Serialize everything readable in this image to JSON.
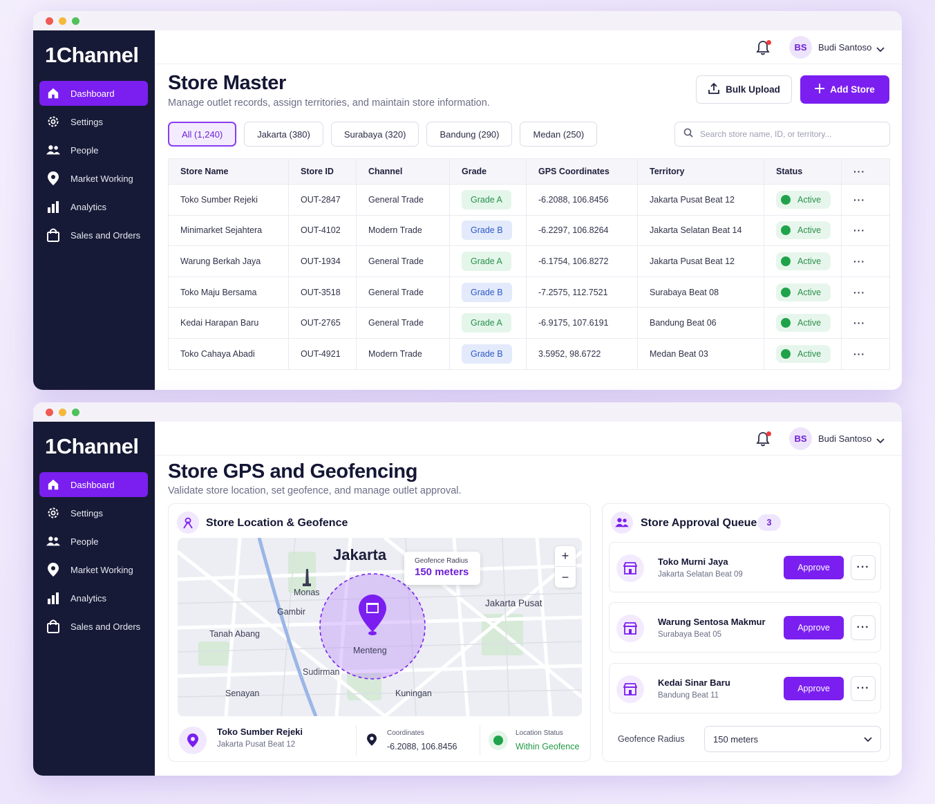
{
  "app": {
    "logo": "1Channel",
    "nav": [
      "Dashboard",
      "Settings",
      "People",
      "Market Working",
      "Analytics",
      "Sales and Orders"
    ],
    "active_nav": "Dashboard",
    "user": {
      "initials": "BS",
      "name": "Budi Santoso"
    },
    "accent": "#7a1ff0"
  },
  "store_master": {
    "title": "Store Master",
    "subtitle": "Manage outlet records, assign territories, and maintain store information.",
    "bulk_upload": "Bulk Upload",
    "add_store": "Add Store",
    "filters": [
      "All (1,240)",
      "Jakarta (380)",
      "Surabaya (320)",
      "Bandung (290)",
      "Medan (250)"
    ],
    "search_placeholder": "Search store name, ID, or territory...",
    "columns": [
      "Store Name",
      "Store ID",
      "Channel",
      "Grade",
      "GPS Coordinates",
      "Territory",
      "Status"
    ],
    "rows": [
      {
        "name": "Toko Sumber Rejeki",
        "id": "OUT-2847",
        "channel": "General Trade",
        "grade": "Grade A",
        "gps": "-6.2088, 106.8456",
        "territory": "Jakarta Pusat Beat 12",
        "status": "Active"
      },
      {
        "name": "Minimarket Sejahtera",
        "id": "OUT-4102",
        "channel": "Modern Trade",
        "grade": "Grade B",
        "gps": "-6.2297, 106.8264",
        "territory": "Jakarta Selatan Beat 14",
        "status": "Active"
      },
      {
        "name": "Warung Berkah Jaya",
        "id": "OUT-1934",
        "channel": "General Trade",
        "grade": "Grade A",
        "gps": "-6.1754, 106.8272",
        "territory": "Jakarta Pusat Beat 12",
        "status": "Active"
      },
      {
        "name": "Toko Maju Bersama",
        "id": "OUT-3518",
        "channel": "General Trade",
        "grade": "Grade B",
        "gps": "-7.2575, 112.7521",
        "territory": "Surabaya Beat 08",
        "status": "Active"
      },
      {
        "name": "Kedai Harapan Baru",
        "id": "OUT-2765",
        "channel": "General Trade",
        "grade": "Grade A",
        "gps": "-6.9175, 107.6191",
        "territory": "Bandung Beat 06",
        "status": "Active"
      },
      {
        "name": "Toko Cahaya Abadi",
        "id": "OUT-4921",
        "channel": "Modern Trade",
        "grade": "Grade B",
        "gps": "3.5952, 98.6722",
        "territory": "Medan Beat 03",
        "status": "Active"
      }
    ]
  },
  "gps": {
    "title": "Store GPS and Geofencing",
    "subtitle": "Validate store location, set geofence, and manage outlet approval.",
    "location_card": {
      "title": "Store Location & Geofence",
      "map_labels": {
        "city": "Jakarta",
        "monas": "Monas",
        "gambir": "Gambir",
        "jakarta_pusat": "Jakarta Pusat",
        "tanah_abang": "Tanah Abang",
        "menteng": "Menteng",
        "sudirman": "Sudirman",
        "senayan": "Senayan",
        "kuningan": "Kuningan"
      },
      "geofence_label": "Geofence Radius",
      "geofence_value": "150 meters",
      "store_name": "Toko Sumber Rejeki",
      "store_beat": "Jakarta Pusat Beat 12",
      "coord_label": "Coordinates",
      "coord_value": "-6.2088, 106.8456",
      "status_label": "Location Status",
      "status_value": "Within Geofence"
    },
    "queue": {
      "title": "Store Approval Queue",
      "count": "3",
      "approve_label": "Approve",
      "items": [
        {
          "name": "Toko Murni Jaya",
          "beat": "Jakarta Selatan Beat 09"
        },
        {
          "name": "Warung Sentosa Makmur",
          "beat": "Surabaya Beat 05"
        },
        {
          "name": "Kedai Sinar Baru",
          "beat": "Bandung Beat 11"
        }
      ],
      "radius_label": "Geofence Radius",
      "radius_value": "150 meters"
    }
  }
}
